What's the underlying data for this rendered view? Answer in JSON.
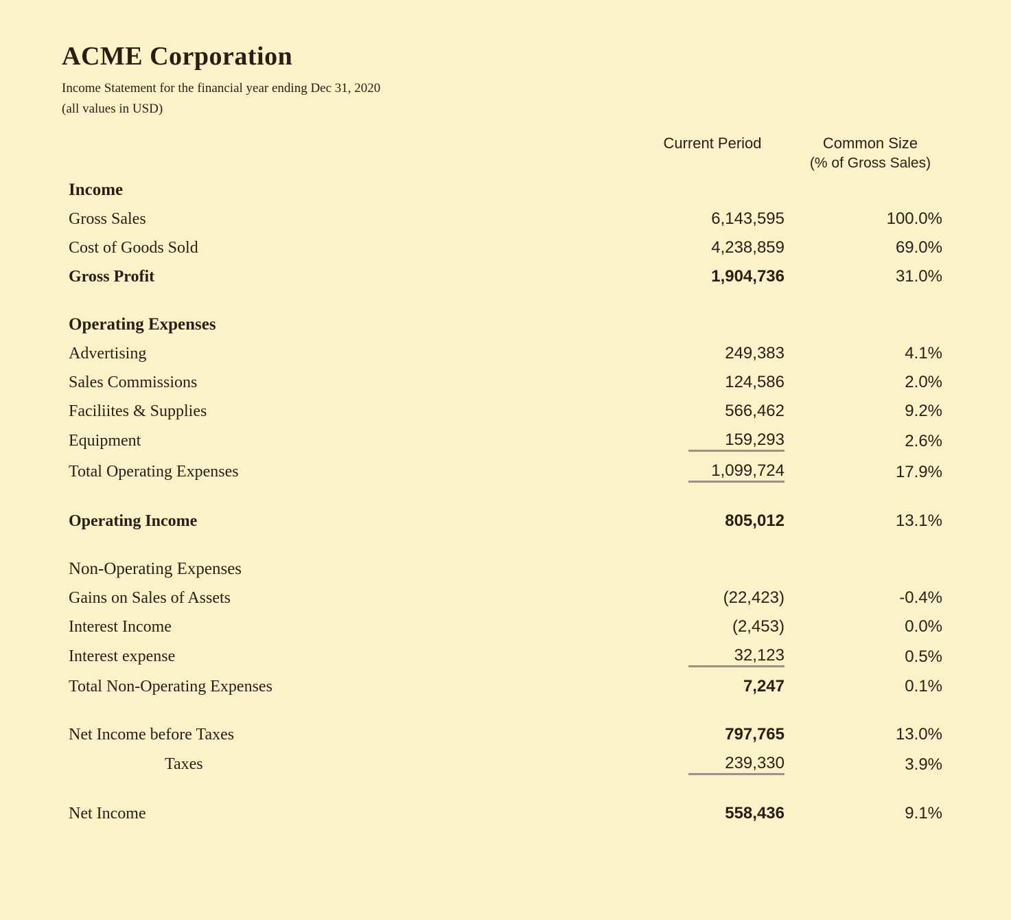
{
  "colors": {
    "background": "#fcf2ca",
    "text": "#2a1e13",
    "rule": "#9b9285"
  },
  "typography": {
    "title_fontsize_pt": 28,
    "body_fontsize_pt": 18,
    "header_fontsize_pt": 17
  },
  "header": {
    "company": "ACME Corporation",
    "subtitle": "Income Statement for the financial year ending Dec 31, 2020",
    "subtitle2": "(all values in USD)"
  },
  "columns": {
    "col1": "Current Period",
    "col2": "Common Size",
    "col2_sub": "(% of Gross Sales)"
  },
  "sections": {
    "income": {
      "title": "Income",
      "rows": [
        {
          "label": "Gross Sales",
          "amount": "6,143,595",
          "percent": "100.0%",
          "bold": false
        },
        {
          "label": "Cost of Goods Sold",
          "amount": "4,238,859",
          "percent": "69.0%",
          "bold": false
        },
        {
          "label": "Gross Profit",
          "amount": "1,904,736",
          "percent": "31.0%",
          "bold": true
        }
      ]
    },
    "opex": {
      "title": "Operating Expenses",
      "rows": [
        {
          "label": "Advertising",
          "amount": "249,383",
          "percent": "4.1%"
        },
        {
          "label": "Sales Commissions",
          "amount": "124,586",
          "percent": "2.0%"
        },
        {
          "label": "Faciliites & Supplies",
          "amount": "566,462",
          "percent": "9.2%"
        },
        {
          "label": "Equipment",
          "amount": "159,293",
          "percent": "2.6%"
        },
        {
          "label": "Total Operating Expenses",
          "amount": "1,099,724",
          "percent": "17.9%"
        }
      ]
    },
    "operating_income": {
      "label": "Operating Income",
      "amount": "805,012",
      "percent": "13.1%"
    },
    "nonop": {
      "title": "Non-Operating Expenses",
      "rows": [
        {
          "label": "Gains on Sales of Assets",
          "amount": "(22,423)",
          "percent": "-0.4%"
        },
        {
          "label": "Interest Income",
          "amount": "(2,453)",
          "percent": "0.0%"
        },
        {
          "label": "Interest expense",
          "amount": "32,123",
          "percent": "0.5%"
        },
        {
          "label": "Total Non-Operating Expenses",
          "amount": "7,247",
          "percent": "0.1%",
          "bold_amount": true
        }
      ]
    },
    "net_before_taxes": {
      "label": "Net Income before Taxes",
      "amount": "797,765",
      "percent": "13.0%"
    },
    "taxes": {
      "label": "Taxes",
      "amount": "239,330",
      "percent": "3.9%"
    },
    "net_income": {
      "label": "Net Income",
      "amount": "558,436",
      "percent": "9.1%"
    }
  }
}
